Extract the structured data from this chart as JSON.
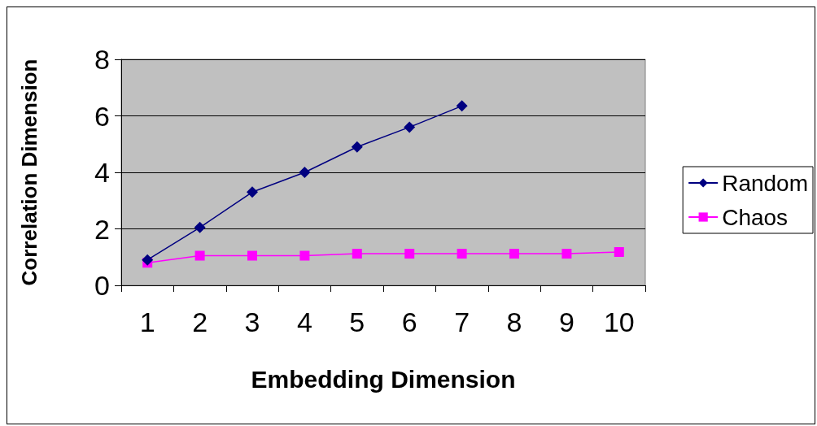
{
  "chart_data": {
    "type": "line",
    "xlabel": "Embedding Dimension",
    "ylabel": "Correlation Dimension",
    "categories": [
      "1",
      "2",
      "3",
      "4",
      "5",
      "6",
      "7",
      "8",
      "9",
      "10"
    ],
    "series": [
      {
        "name": "Random",
        "color": "#000080",
        "marker": "diamond",
        "values": [
          0.9,
          2.05,
          3.3,
          4.0,
          4.9,
          5.6,
          6.35,
          null,
          null,
          null
        ]
      },
      {
        "name": "Chaos",
        "color": "#ff00ff",
        "marker": "square",
        "values": [
          0.8,
          1.05,
          1.05,
          1.05,
          1.12,
          1.12,
          1.12,
          1.12,
          1.12,
          1.18
        ]
      }
    ],
    "ylim": [
      0,
      8
    ],
    "yticks": [
      0,
      2,
      4,
      6,
      8
    ],
    "grid": "y",
    "legend": "right",
    "line_style": "solid"
  }
}
